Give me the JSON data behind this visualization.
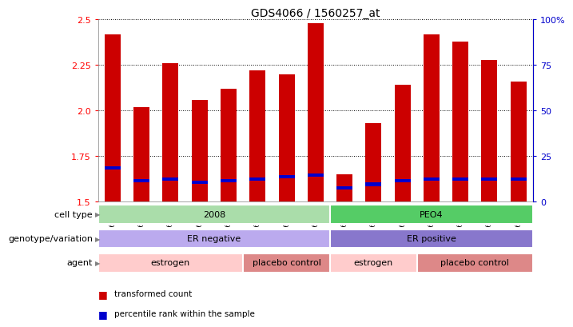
{
  "title": "GDS4066 / 1560257_at",
  "samples": [
    "GSM560762",
    "GSM560763",
    "GSM560769",
    "GSM560770",
    "GSM560761",
    "GSM560766",
    "GSM560767",
    "GSM560768",
    "GSM560760",
    "GSM560764",
    "GSM560765",
    "GSM560772",
    "GSM560771",
    "GSM560773",
    "GSM560774"
  ],
  "bar_values": [
    2.42,
    2.02,
    2.26,
    2.06,
    2.12,
    2.22,
    2.2,
    2.48,
    1.65,
    1.93,
    2.14,
    2.42,
    2.38,
    2.28,
    2.16
  ],
  "blue_values": [
    1.685,
    1.615,
    1.625,
    1.605,
    1.615,
    1.625,
    1.635,
    1.645,
    1.575,
    1.595,
    1.615,
    1.625,
    1.625,
    1.625,
    1.625
  ],
  "bar_base": 1.5,
  "bar_color": "#cc0000",
  "blue_color": "#0000cc",
  "ylim_left": [
    1.5,
    2.5
  ],
  "yticks_left": [
    1.5,
    1.75,
    2.0,
    2.25,
    2.5
  ],
  "yticks_right": [
    0,
    25,
    50,
    75,
    100
  ],
  "ylabel_right_color": "#0000cc",
  "cell_type_groups": [
    {
      "label": "2008",
      "start": 0,
      "end": 8,
      "color": "#aaddaa"
    },
    {
      "label": "PEO4",
      "start": 8,
      "end": 15,
      "color": "#55cc66"
    }
  ],
  "genotype_groups": [
    {
      "label": "ER negative",
      "start": 0,
      "end": 8,
      "color": "#bbaaee"
    },
    {
      "label": "ER positive",
      "start": 8,
      "end": 15,
      "color": "#8877cc"
    }
  ],
  "agent_groups": [
    {
      "label": "estrogen",
      "start": 0,
      "end": 5,
      "color": "#ffcccc"
    },
    {
      "label": "placebo control",
      "start": 5,
      "end": 8,
      "color": "#dd8888"
    },
    {
      "label": "estrogen",
      "start": 8,
      "end": 11,
      "color": "#ffcccc"
    },
    {
      "label": "placebo control",
      "start": 11,
      "end": 15,
      "color": "#dd8888"
    }
  ],
  "legend_items": [
    {
      "label": "transformed count",
      "color": "#cc0000"
    },
    {
      "label": "percentile rank within the sample",
      "color": "#0000cc"
    }
  ],
  "row_labels": [
    "cell type",
    "genotype/variation",
    "agent"
  ],
  "bar_width": 0.55
}
